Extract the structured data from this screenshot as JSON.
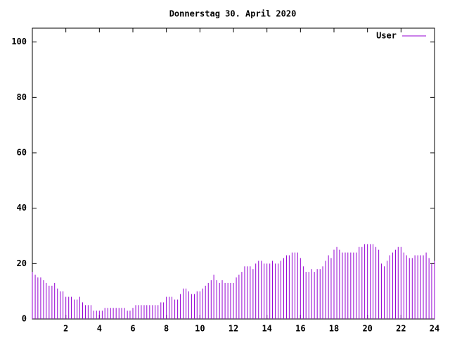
{
  "chart_data": {
    "type": "impulses",
    "title": "Donnerstag 30. April 2020",
    "x": [
      0,
      0.17,
      0.33,
      0.5,
      0.67,
      0.83,
      1,
      1.17,
      1.33,
      1.5,
      1.67,
      1.83,
      2,
      2.17,
      2.33,
      2.5,
      2.67,
      2.83,
      3,
      3.17,
      3.33,
      3.5,
      3.67,
      3.83,
      4,
      4.17,
      4.33,
      4.5,
      4.67,
      4.83,
      5,
      5.17,
      5.33,
      5.5,
      5.67,
      5.83,
      6,
      6.17,
      6.33,
      6.5,
      6.67,
      6.83,
      7,
      7.17,
      7.33,
      7.5,
      7.67,
      7.83,
      8,
      8.17,
      8.33,
      8.5,
      8.67,
      8.83,
      9,
      9.17,
      9.33,
      9.5,
      9.67,
      9.83,
      10,
      10.17,
      10.33,
      10.5,
      10.67,
      10.83,
      11,
      11.17,
      11.33,
      11.5,
      11.67,
      11.83,
      12,
      12.17,
      12.33,
      12.5,
      12.67,
      12.83,
      13,
      13.17,
      13.33,
      13.5,
      13.67,
      13.83,
      14,
      14.17,
      14.33,
      14.5,
      14.67,
      14.83,
      15,
      15.17,
      15.33,
      15.5,
      15.67,
      15.83,
      16,
      16.17,
      16.33,
      16.5,
      16.67,
      16.83,
      17,
      17.17,
      17.33,
      17.5,
      17.67,
      17.83,
      18,
      18.17,
      18.33,
      18.5,
      18.67,
      18.83,
      19,
      19.17,
      19.33,
      19.5,
      19.67,
      19.83,
      20,
      20.17,
      20.33,
      20.5,
      20.67,
      20.83,
      21,
      21.17,
      21.33,
      21.5,
      21.67,
      21.83,
      22,
      22.17,
      22.33,
      22.5,
      22.67,
      22.83,
      23,
      23.17,
      23.33,
      23.5,
      23.67,
      23.83,
      24
    ],
    "series": [
      {
        "name": "User",
        "color": "#9400d3",
        "values": [
          17,
          16,
          15,
          15,
          14,
          13,
          12,
          12,
          13,
          11,
          10,
          10,
          8,
          8,
          8,
          7,
          7,
          8,
          6,
          5,
          5,
          5,
          3,
          3,
          3,
          3,
          4,
          4,
          4,
          4,
          4,
          4,
          4,
          4,
          3,
          3,
          4,
          5,
          5,
          5,
          5,
          5,
          5,
          5,
          5,
          5,
          6,
          6,
          8,
          8,
          8,
          7,
          7,
          9,
          11,
          11,
          10,
          9,
          9,
          10,
          10,
          11,
          12,
          13,
          14,
          16,
          14,
          13,
          14,
          13,
          13,
          13,
          13,
          15,
          16,
          17,
          19,
          19,
          19,
          18,
          20,
          21,
          21,
          20,
          20,
          20,
          21,
          20,
          20,
          21,
          22,
          23,
          23,
          24,
          24,
          24,
          22,
          19,
          17,
          17,
          18,
          17,
          18,
          18,
          19,
          21,
          23,
          22,
          25,
          26,
          25,
          24,
          24,
          24,
          24,
          24,
          24,
          26,
          26,
          27,
          27,
          27,
          27,
          26,
          25,
          20,
          19,
          21,
          23,
          24,
          25,
          26,
          26,
          24,
          23,
          22,
          22,
          23,
          23,
          23,
          23,
          24,
          22,
          20,
          21
        ]
      }
    ],
    "xlim": [
      0,
      24
    ],
    "xticks": [
      2,
      4,
      6,
      8,
      10,
      12,
      14,
      16,
      18,
      20,
      22,
      24
    ],
    "ylim": [
      0,
      105
    ],
    "yticks": [
      0,
      20,
      40,
      60,
      80,
      100
    ],
    "legend": "top-right"
  }
}
